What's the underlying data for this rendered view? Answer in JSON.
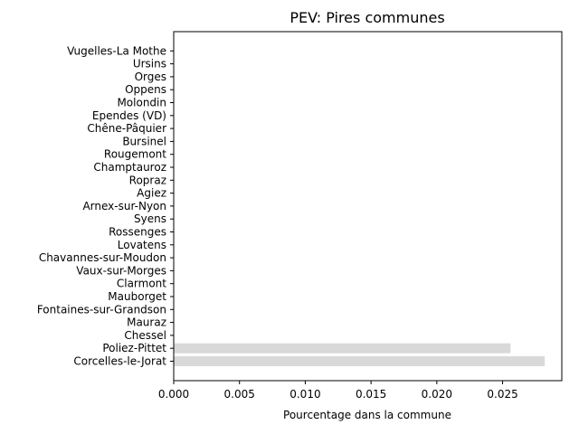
{
  "chart_data": {
    "type": "bar",
    "orientation": "horizontal",
    "title": "PEV: Pires communes",
    "xlabel": "Pourcentage dans la commune",
    "ylabel": "",
    "xlim": [
      0,
      0.0295
    ],
    "xticks": [
      "0.000",
      "0.005",
      "0.010",
      "0.015",
      "0.020",
      "0.025"
    ],
    "grid": false,
    "bar_color": "#d9d9d9",
    "categories": [
      "Corcelles-le-Jorat",
      "Poliez-Pittet",
      "Chessel",
      "Mauraz",
      "Fontaines-sur-Grandson",
      "Mauborget",
      "Clarmont",
      "Vaux-sur-Morges",
      "Chavannes-sur-Moudon",
      "Lovatens",
      "Rossenges",
      "Syens",
      "Arnex-sur-Nyon",
      "Agiez",
      "Ropraz",
      "Champtauroz",
      "Rougemont",
      "Bursinel",
      "Chêne-Pâquier",
      "Ependes (VD)",
      "Molondin",
      "Oppens",
      "Orges",
      "Ursins",
      "Vugelles-La Mothe"
    ],
    "values": [
      0.0282,
      0.0256,
      0,
      0,
      0,
      0,
      0,
      0,
      0,
      0,
      0,
      0,
      0,
      0,
      0,
      0,
      0,
      0,
      0,
      0,
      0,
      0,
      0,
      0,
      0
    ]
  }
}
